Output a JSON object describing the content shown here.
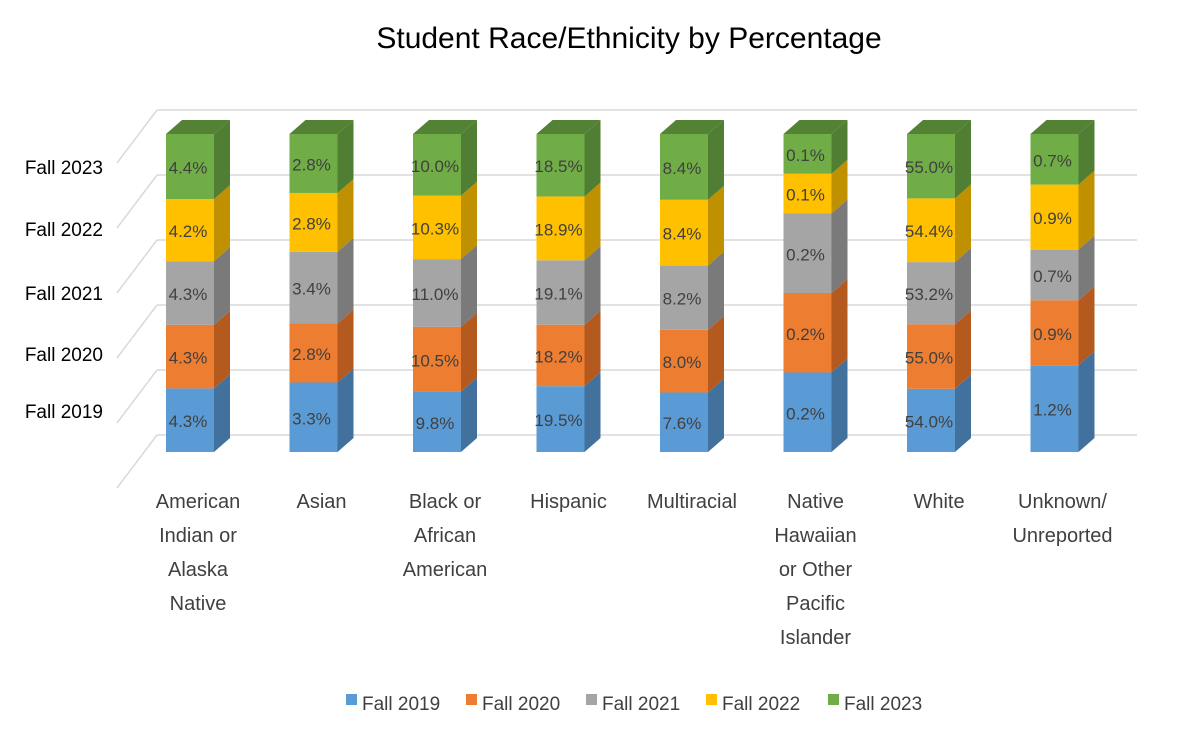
{
  "chart_data": {
    "type": "bar",
    "subtype": "stacked-3d",
    "title": "Student Race/Ethnicity by Percentage",
    "categories": [
      [
        "American",
        "Indian or",
        "Alaska",
        "Native"
      ],
      [
        "Asian"
      ],
      [
        "Black or",
        "African",
        "American"
      ],
      [
        "Hispanic"
      ],
      [
        "Multiracial"
      ],
      [
        "Native",
        "Hawaiian",
        "or Other",
        "Pacific",
        "Islander"
      ],
      [
        "White"
      ],
      [
        "Unknown/",
        "Unreported"
      ]
    ],
    "depth_axis_labels": [
      "Fall 2019",
      "Fall 2020",
      "Fall 2021",
      "Fall 2022",
      "Fall 2023"
    ],
    "series": [
      {
        "name": "Fall 2019",
        "color": "#5B9BD5",
        "side": "#41719C",
        "top": "#7FB3E0",
        "values": [
          4.3,
          3.3,
          9.8,
          19.5,
          7.6,
          0.2,
          54.0,
          1.2
        ],
        "labels": [
          "4.3%",
          "3.3%",
          "9.8%",
          "19.5%",
          "7.6%",
          "0.2%",
          "54.0%",
          "1.2%"
        ]
      },
      {
        "name": "Fall 2020",
        "color": "#ED7D31",
        "side": "#B55A1F",
        "top": "#F29B63",
        "values": [
          4.3,
          2.8,
          10.5,
          18.2,
          8.0,
          0.2,
          55.0,
          0.9
        ],
        "labels": [
          "4.3%",
          "2.8%",
          "10.5%",
          "18.2%",
          "8.0%",
          "0.2%",
          "55.0%",
          "0.9%"
        ]
      },
      {
        "name": "Fall 2021",
        "color": "#A5A5A5",
        "side": "#7A7A7A",
        "top": "#BFBFBF",
        "values": [
          4.3,
          3.4,
          11.0,
          19.1,
          8.2,
          0.2,
          53.2,
          0.7
        ],
        "labels": [
          "4.3%",
          "3.4%",
          "11.0%",
          "19.1%",
          "8.2%",
          "0.2%",
          "53.2%",
          "0.7%"
        ]
      },
      {
        "name": "Fall 2022",
        "color": "#FFC000",
        "side": "#BF9000",
        "top": "#FFD24D",
        "values": [
          4.2,
          2.8,
          10.3,
          18.9,
          8.4,
          0.1,
          54.4,
          0.9
        ],
        "labels": [
          "4.2%",
          "2.8%",
          "10.3%",
          "18.9%",
          "8.4%",
          "0.1%",
          "54.4%",
          "0.9%"
        ]
      },
      {
        "name": "Fall 2023",
        "color": "#70AD47",
        "side": "#507E32",
        "top": "#548235",
        "values": [
          4.4,
          2.8,
          10.0,
          18.5,
          8.4,
          0.1,
          55.0,
          0.7
        ],
        "labels": [
          "4.4%",
          "2.8%",
          "10.0%",
          "18.5%",
          "8.4%",
          "0.1%",
          "55.0%",
          "0.7%"
        ]
      }
    ],
    "segment_heights": [
      [
        4.3,
        4.3,
        4.3,
        4.2,
        4.4
      ],
      [
        3.3,
        2.8,
        3.4,
        2.8,
        2.8
      ],
      [
        9.8,
        10.5,
        11.0,
        10.3,
        10.0
      ],
      [
        19.5,
        18.2,
        19.1,
        18.9,
        18.5
      ],
      [
        7.6,
        8.0,
        8.2,
        8.4,
        8.4
      ],
      [
        0.2,
        0.2,
        0.2,
        0.1,
        0.1
      ],
      [
        54.0,
        55.0,
        53.2,
        54.4,
        55.0
      ],
      [
        1.2,
        0.9,
        0.7,
        0.9,
        0.7
      ]
    ],
    "grid": true,
    "legend_position": "bottom"
  }
}
